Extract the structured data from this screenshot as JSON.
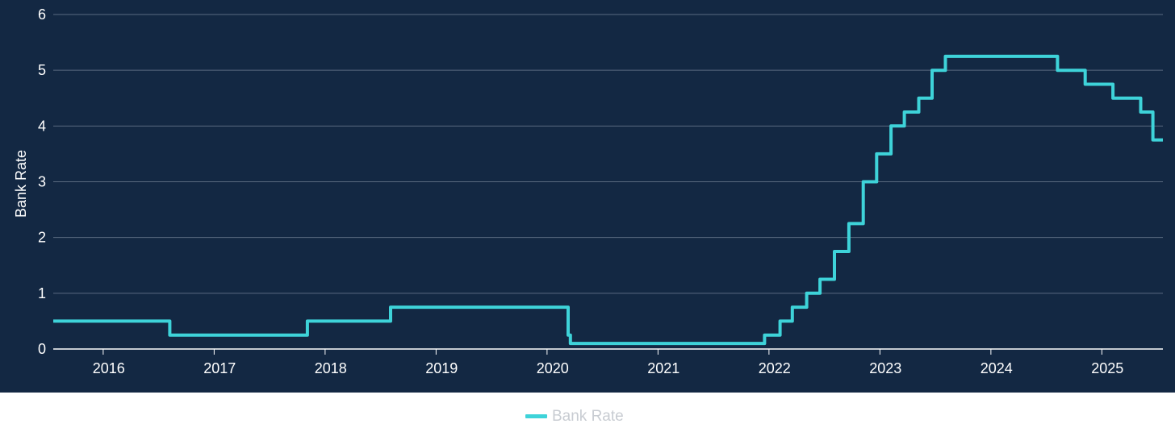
{
  "colors": {
    "plot_background": "#132843",
    "page_background": "#ffffff",
    "gridline": "#5a6a80",
    "line": "#3ed3d9",
    "axis_text": "#ffffff",
    "legend_text": "#c8ccd2"
  },
  "chart_data": {
    "type": "line",
    "step": true,
    "title": "",
    "xlabel": "",
    "ylabel": "Bank Rate",
    "xlim": [
      2015.55,
      2025.55
    ],
    "ylim": [
      0,
      6
    ],
    "yticks": [
      0,
      1,
      2,
      3,
      4,
      5,
      6
    ],
    "xticks": [
      2016,
      2017,
      2018,
      2019,
      2020,
      2021,
      2022,
      2023,
      2024,
      2025
    ],
    "grid": true,
    "legend_placement": "bottom-center",
    "series": [
      {
        "name": "Bank Rate",
        "x": [
          2015.55,
          2016.6,
          2017.84,
          2018.59,
          2020.19,
          2020.21,
          2021.96,
          2022.1,
          2022.21,
          2022.34,
          2022.46,
          2022.59,
          2022.72,
          2022.85,
          2022.97,
          2023.1,
          2023.22,
          2023.35,
          2023.47,
          2023.59,
          2024.6,
          2024.85,
          2025.1,
          2025.35,
          2025.46
        ],
        "y": [
          0.5,
          0.25,
          0.5,
          0.75,
          0.25,
          0.1,
          0.25,
          0.5,
          0.75,
          1.0,
          1.25,
          1.75,
          2.25,
          3.0,
          3.5,
          4.0,
          4.25,
          4.5,
          5.0,
          5.25,
          5.0,
          4.75,
          4.5,
          4.25,
          4.0
        ]
      }
    ],
    "x_end": 2025.55,
    "y_end_segment": [
      2025.46,
      3.75
    ]
  }
}
